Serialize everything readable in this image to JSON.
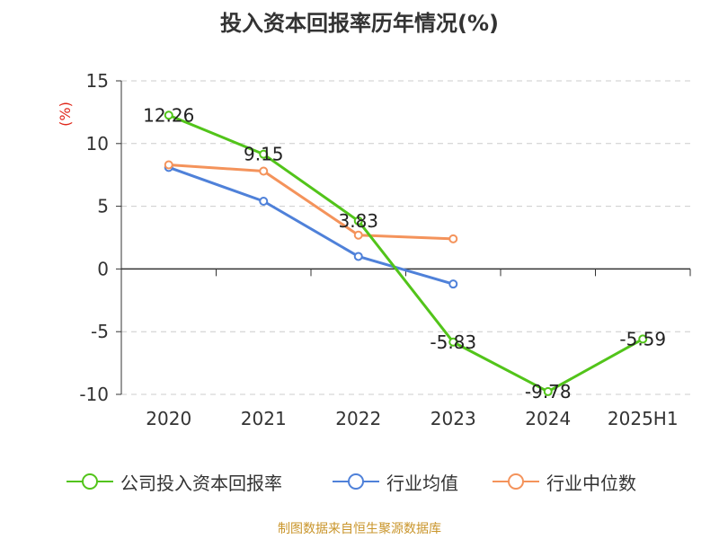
{
  "chart_data": {
    "type": "line",
    "title": "投入资本回报率历年情况(%)",
    "ylabel": "(%)",
    "categories": [
      "2020",
      "2021",
      "2022",
      "2023",
      "2024",
      "2025H1"
    ],
    "yticks": [
      "15",
      "10",
      "5",
      "0",
      "-5",
      "-10"
    ],
    "ylim": [
      -10,
      15
    ],
    "grid": true,
    "series": [
      {
        "name": "公司投入资本回报率",
        "color": "#52c41a",
        "values": [
          12.26,
          9.15,
          3.83,
          -5.83,
          -9.78,
          -5.59
        ],
        "labels": [
          "12.26",
          "9.15",
          "3.83",
          "-5.83",
          "-9.78",
          "-5.59"
        ]
      },
      {
        "name": "行业均值",
        "color": "#4f81d9",
        "values": [
          8.1,
          5.4,
          1.0,
          -1.2,
          null,
          null
        ]
      },
      {
        "name": "行业中位数",
        "color": "#f4935b",
        "values": [
          8.3,
          7.8,
          2.7,
          2.4,
          null,
          null
        ]
      }
    ],
    "legend_position": "bottom"
  },
  "source_note": "制图数据来自恒生聚源数据库"
}
